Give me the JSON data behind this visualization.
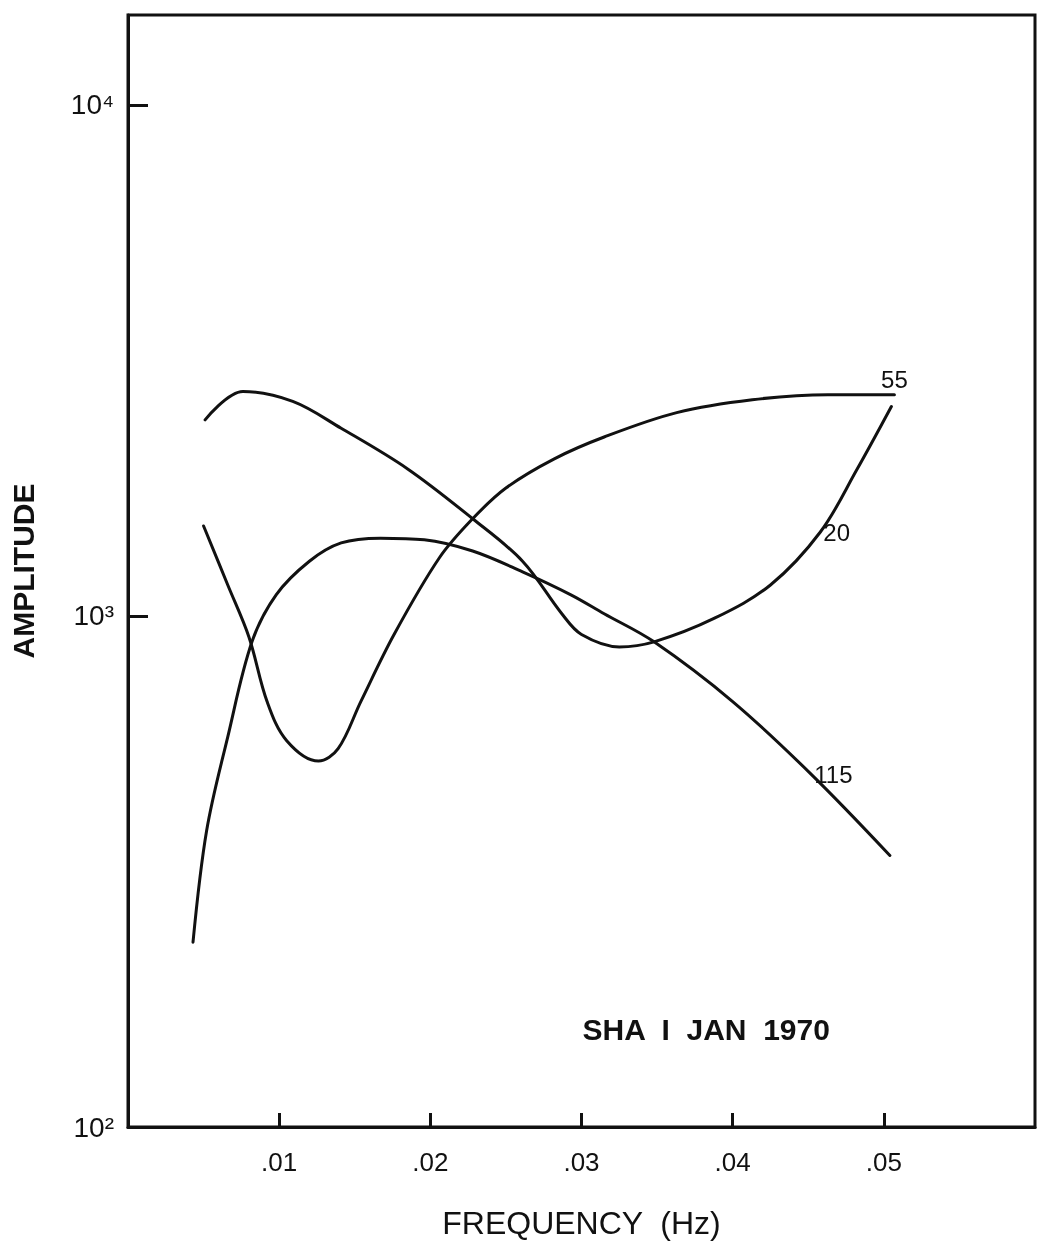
{
  "chart_data": {
    "type": "line",
    "xlabel": "FREQUENCY  (Hz)",
    "ylabel": "AMPLITUDE",
    "annotations": [
      "SHA  I  JAN  1970"
    ],
    "log": true,
    "grid": false,
    "legend": false,
    "marker": "none",
    "line_style": "solid",
    "xlim": [
      0,
      0.06
    ],
    "ylim": [
      100,
      15000
    ],
    "xticks": [
      {
        "value": 0.01,
        "label": ".01"
      },
      {
        "value": 0.02,
        "label": ".02"
      },
      {
        "value": 0.03,
        "label": ".03"
      },
      {
        "value": 0.04,
        "label": ".04"
      },
      {
        "value": 0.05,
        "label": ".05"
      }
    ],
    "yticks": [
      {
        "value": 100,
        "label": "10²"
      },
      {
        "value": 1000,
        "label": "10³"
      },
      {
        "value": 10000,
        "label": "10⁴"
      }
    ],
    "series": [
      {
        "name": "55",
        "color": "#111111",
        "x": [
          0.005,
          0.0066,
          0.008,
          0.0092,
          0.0105,
          0.0126,
          0.0139,
          0.0154,
          0.0176,
          0.0206,
          0.0228,
          0.025,
          0.0282,
          0.0315,
          0.0363,
          0.0413,
          0.0463,
          0.0507
        ],
        "values": [
          1500,
          1150,
          910,
          680,
          570,
          520,
          550,
          680,
          920,
          1300,
          1550,
          1780,
          2030,
          2240,
          2500,
          2650,
          2710,
          2710
        ]
      },
      {
        "name": "20",
        "color": "#111111",
        "x": [
          0.0051,
          0.0076,
          0.0109,
          0.0141,
          0.0185,
          0.0228,
          0.0261,
          0.0287,
          0.03,
          0.0325,
          0.0348,
          0.0388,
          0.0425,
          0.0458,
          0.0482,
          0.0505
        ],
        "values": [
          2420,
          2750,
          2630,
          2330,
          1940,
          1550,
          1280,
          1010,
          920,
          870,
          890,
          990,
          1150,
          1460,
          1930,
          2570
        ]
      },
      {
        "name": "115",
        "color": "#111111",
        "x": [
          0.0043,
          0.0052,
          0.0066,
          0.0082,
          0.0098,
          0.012,
          0.0141,
          0.0167,
          0.0196,
          0.0228,
          0.0261,
          0.0293,
          0.0315,
          0.0348,
          0.04,
          0.0452,
          0.0504
        ],
        "values": [
          230,
          380,
          580,
          890,
          1100,
          1280,
          1390,
          1420,
          1410,
          1340,
          1220,
          1100,
          1010,
          890,
          680,
          490,
          340
        ]
      }
    ]
  }
}
